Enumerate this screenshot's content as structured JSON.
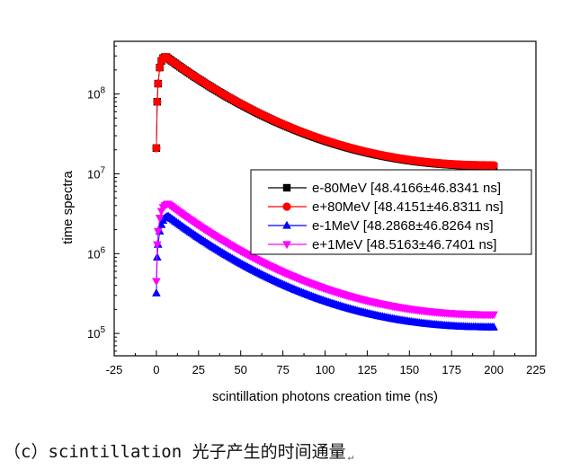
{
  "caption": "（c）scintillation 光子产生的时间通量",
  "caption_mark": "↵",
  "colors": {
    "e-80MeV": "#000000",
    "e+80MeV": "#ff0000",
    "e-1MeV": "#0000ff",
    "e+1MeV": "#ff00ff"
  },
  "chart_data": {
    "type": "scatter",
    "title": "",
    "xlabel": "scintillation photons creation time (ns)",
    "ylabel": "time spectra",
    "xlim": [
      -25,
      225
    ],
    "ylim_log10": [
      4.72,
      8.66
    ],
    "yscale": "log",
    "grid": false,
    "legend_placement": "right",
    "xticks": [
      -25,
      0,
      25,
      50,
      75,
      100,
      125,
      150,
      175,
      200,
      225
    ],
    "xtick_labels": [
      "-25",
      "0",
      "25",
      "50",
      "75",
      "100",
      "125",
      "150",
      "175",
      "200",
      "225"
    ],
    "yticks": [
      {
        "value": 100000,
        "base": "10",
        "exp": "5"
      },
      {
        "value": 1000000,
        "base": "10",
        "exp": "6"
      },
      {
        "value": 10000000,
        "base": "10",
        "exp": "7"
      },
      {
        "value": 100000000,
        "base": "10",
        "exp": "8"
      }
    ],
    "series": [
      {
        "name": "e-80MeV [48.4166±46.8341 ns]",
        "color": "#000000",
        "marker": "square",
        "rise": {
          "x": [
            0,
            0.5,
            1,
            2,
            3,
            4,
            5,
            6
          ],
          "y": [
            21000000,
            80000000,
            135000000,
            215000000,
            260000000,
            282000000,
            290000000,
            290000000
          ]
        },
        "peak_time": 6,
        "peak_value": 290000000,
        "end_value": 12500000
      },
      {
        "name": "e+80MeV  [48.4151±46.8311 ns]",
        "color": "#ff0000",
        "marker": "circle",
        "rise": {
          "x": [
            0,
            0.5,
            1,
            2,
            3,
            4,
            5,
            6
          ],
          "y": [
            21000000,
            80000000,
            135000000,
            215000000,
            260000000,
            282000000,
            290000000,
            290000000
          ]
        },
        "peak_time": 6,
        "peak_value": 290000000,
        "end_value": 12800000
      },
      {
        "name": "e-1MeV [48.2868±46.8264 ns]",
        "color": "#0000ff",
        "marker": "triangle-up",
        "rise": {
          "x": [
            0,
            0.5,
            1,
            2,
            3,
            4,
            5,
            6,
            7
          ],
          "y": [
            320000,
            900000,
            1300000,
            1900000,
            2300000,
            2600000,
            2800000,
            2900000,
            2950000
          ]
        },
        "peak_time": 7,
        "peak_value": 2950000,
        "end_value": 120000
      },
      {
        "name": "e+1MeV [48.5163±46.7401 ns]",
        "color": "#ff00ff",
        "marker": "triangle-down",
        "rise": {
          "x": [
            0,
            0.5,
            1,
            2,
            3,
            4,
            5,
            6,
            7
          ],
          "y": [
            450000,
            1300000,
            1900000,
            2800000,
            3400000,
            3800000,
            4000000,
            4150000,
            4200000
          ]
        },
        "peak_time": 7,
        "peak_value": 4200000,
        "end_value": 172000
      }
    ]
  }
}
